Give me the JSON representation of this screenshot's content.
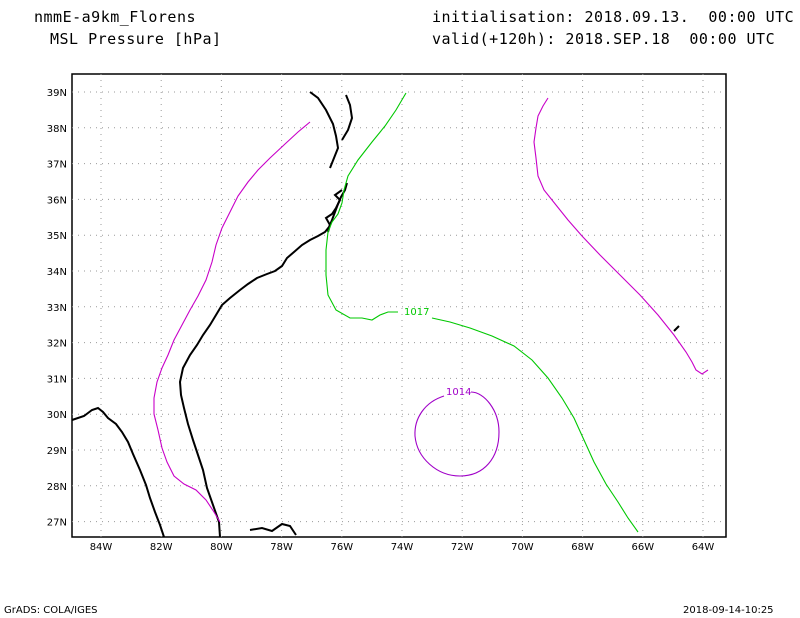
{
  "header": {
    "model": "nmmE-a9km_Florens",
    "field": "MSL Pressure [hPa]",
    "init": "initialisation: 2018.09.13.  00:00 UTC",
    "valid": "valid(+120h): 2018.SEP.18  00:00 UTC"
  },
  "footer": {
    "left": "GrADS: COLA/IGES",
    "right": "2018-09-14-10:25"
  },
  "map": {
    "lon_ticks": [
      "84W",
      "82W",
      "80W",
      "78W",
      "76W",
      "74W",
      "72W",
      "70W",
      "68W",
      "66W",
      "64W"
    ],
    "lat_ticks": [
      "39N",
      "38N",
      "37N",
      "36N",
      "35N",
      "34N",
      "33N",
      "32N",
      "31N",
      "30N",
      "29N",
      "28N",
      "27N"
    ],
    "contours": [
      {
        "label": "1017",
        "color": "#00c800"
      },
      {
        "label": "1014",
        "color": "#a000c8"
      },
      {
        "label": "",
        "color": "#c800c8"
      }
    ]
  }
}
